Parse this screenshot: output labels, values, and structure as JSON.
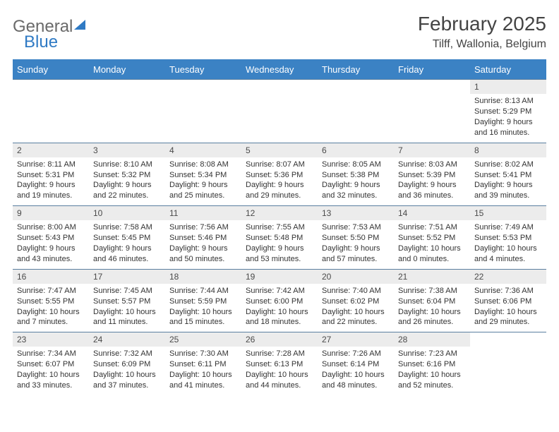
{
  "logo": {
    "word1": "General",
    "word2": "Blue"
  },
  "title": "February 2025",
  "location": "Tilff, Wallonia, Belgium",
  "colors": {
    "header_bg": "#3b82c4",
    "header_text": "#ffffff",
    "daynum_bg": "#ececec",
    "week_border": "#5a7fa0",
    "text": "#333333",
    "logo_gray": "#6a6a6a",
    "logo_blue": "#2f7ac4"
  },
  "day_headers": [
    "Sunday",
    "Monday",
    "Tuesday",
    "Wednesday",
    "Thursday",
    "Friday",
    "Saturday"
  ],
  "weeks": [
    [
      null,
      null,
      null,
      null,
      null,
      null,
      {
        "n": "1",
        "sunrise": "Sunrise: 8:13 AM",
        "sunset": "Sunset: 5:29 PM",
        "daylight": "Daylight: 9 hours and 16 minutes."
      }
    ],
    [
      {
        "n": "2",
        "sunrise": "Sunrise: 8:11 AM",
        "sunset": "Sunset: 5:31 PM",
        "daylight": "Daylight: 9 hours and 19 minutes."
      },
      {
        "n": "3",
        "sunrise": "Sunrise: 8:10 AM",
        "sunset": "Sunset: 5:32 PM",
        "daylight": "Daylight: 9 hours and 22 minutes."
      },
      {
        "n": "4",
        "sunrise": "Sunrise: 8:08 AM",
        "sunset": "Sunset: 5:34 PM",
        "daylight": "Daylight: 9 hours and 25 minutes."
      },
      {
        "n": "5",
        "sunrise": "Sunrise: 8:07 AM",
        "sunset": "Sunset: 5:36 PM",
        "daylight": "Daylight: 9 hours and 29 minutes."
      },
      {
        "n": "6",
        "sunrise": "Sunrise: 8:05 AM",
        "sunset": "Sunset: 5:38 PM",
        "daylight": "Daylight: 9 hours and 32 minutes."
      },
      {
        "n": "7",
        "sunrise": "Sunrise: 8:03 AM",
        "sunset": "Sunset: 5:39 PM",
        "daylight": "Daylight: 9 hours and 36 minutes."
      },
      {
        "n": "8",
        "sunrise": "Sunrise: 8:02 AM",
        "sunset": "Sunset: 5:41 PM",
        "daylight": "Daylight: 9 hours and 39 minutes."
      }
    ],
    [
      {
        "n": "9",
        "sunrise": "Sunrise: 8:00 AM",
        "sunset": "Sunset: 5:43 PM",
        "daylight": "Daylight: 9 hours and 43 minutes."
      },
      {
        "n": "10",
        "sunrise": "Sunrise: 7:58 AM",
        "sunset": "Sunset: 5:45 PM",
        "daylight": "Daylight: 9 hours and 46 minutes."
      },
      {
        "n": "11",
        "sunrise": "Sunrise: 7:56 AM",
        "sunset": "Sunset: 5:46 PM",
        "daylight": "Daylight: 9 hours and 50 minutes."
      },
      {
        "n": "12",
        "sunrise": "Sunrise: 7:55 AM",
        "sunset": "Sunset: 5:48 PM",
        "daylight": "Daylight: 9 hours and 53 minutes."
      },
      {
        "n": "13",
        "sunrise": "Sunrise: 7:53 AM",
        "sunset": "Sunset: 5:50 PM",
        "daylight": "Daylight: 9 hours and 57 minutes."
      },
      {
        "n": "14",
        "sunrise": "Sunrise: 7:51 AM",
        "sunset": "Sunset: 5:52 PM",
        "daylight": "Daylight: 10 hours and 0 minutes."
      },
      {
        "n": "15",
        "sunrise": "Sunrise: 7:49 AM",
        "sunset": "Sunset: 5:53 PM",
        "daylight": "Daylight: 10 hours and 4 minutes."
      }
    ],
    [
      {
        "n": "16",
        "sunrise": "Sunrise: 7:47 AM",
        "sunset": "Sunset: 5:55 PM",
        "daylight": "Daylight: 10 hours and 7 minutes."
      },
      {
        "n": "17",
        "sunrise": "Sunrise: 7:45 AM",
        "sunset": "Sunset: 5:57 PM",
        "daylight": "Daylight: 10 hours and 11 minutes."
      },
      {
        "n": "18",
        "sunrise": "Sunrise: 7:44 AM",
        "sunset": "Sunset: 5:59 PM",
        "daylight": "Daylight: 10 hours and 15 minutes."
      },
      {
        "n": "19",
        "sunrise": "Sunrise: 7:42 AM",
        "sunset": "Sunset: 6:00 PM",
        "daylight": "Daylight: 10 hours and 18 minutes."
      },
      {
        "n": "20",
        "sunrise": "Sunrise: 7:40 AM",
        "sunset": "Sunset: 6:02 PM",
        "daylight": "Daylight: 10 hours and 22 minutes."
      },
      {
        "n": "21",
        "sunrise": "Sunrise: 7:38 AM",
        "sunset": "Sunset: 6:04 PM",
        "daylight": "Daylight: 10 hours and 26 minutes."
      },
      {
        "n": "22",
        "sunrise": "Sunrise: 7:36 AM",
        "sunset": "Sunset: 6:06 PM",
        "daylight": "Daylight: 10 hours and 29 minutes."
      }
    ],
    [
      {
        "n": "23",
        "sunrise": "Sunrise: 7:34 AM",
        "sunset": "Sunset: 6:07 PM",
        "daylight": "Daylight: 10 hours and 33 minutes."
      },
      {
        "n": "24",
        "sunrise": "Sunrise: 7:32 AM",
        "sunset": "Sunset: 6:09 PM",
        "daylight": "Daylight: 10 hours and 37 minutes."
      },
      {
        "n": "25",
        "sunrise": "Sunrise: 7:30 AM",
        "sunset": "Sunset: 6:11 PM",
        "daylight": "Daylight: 10 hours and 41 minutes."
      },
      {
        "n": "26",
        "sunrise": "Sunrise: 7:28 AM",
        "sunset": "Sunset: 6:13 PM",
        "daylight": "Daylight: 10 hours and 44 minutes."
      },
      {
        "n": "27",
        "sunrise": "Sunrise: 7:26 AM",
        "sunset": "Sunset: 6:14 PM",
        "daylight": "Daylight: 10 hours and 48 minutes."
      },
      {
        "n": "28",
        "sunrise": "Sunrise: 7:23 AM",
        "sunset": "Sunset: 6:16 PM",
        "daylight": "Daylight: 10 hours and 52 minutes."
      },
      null
    ]
  ]
}
